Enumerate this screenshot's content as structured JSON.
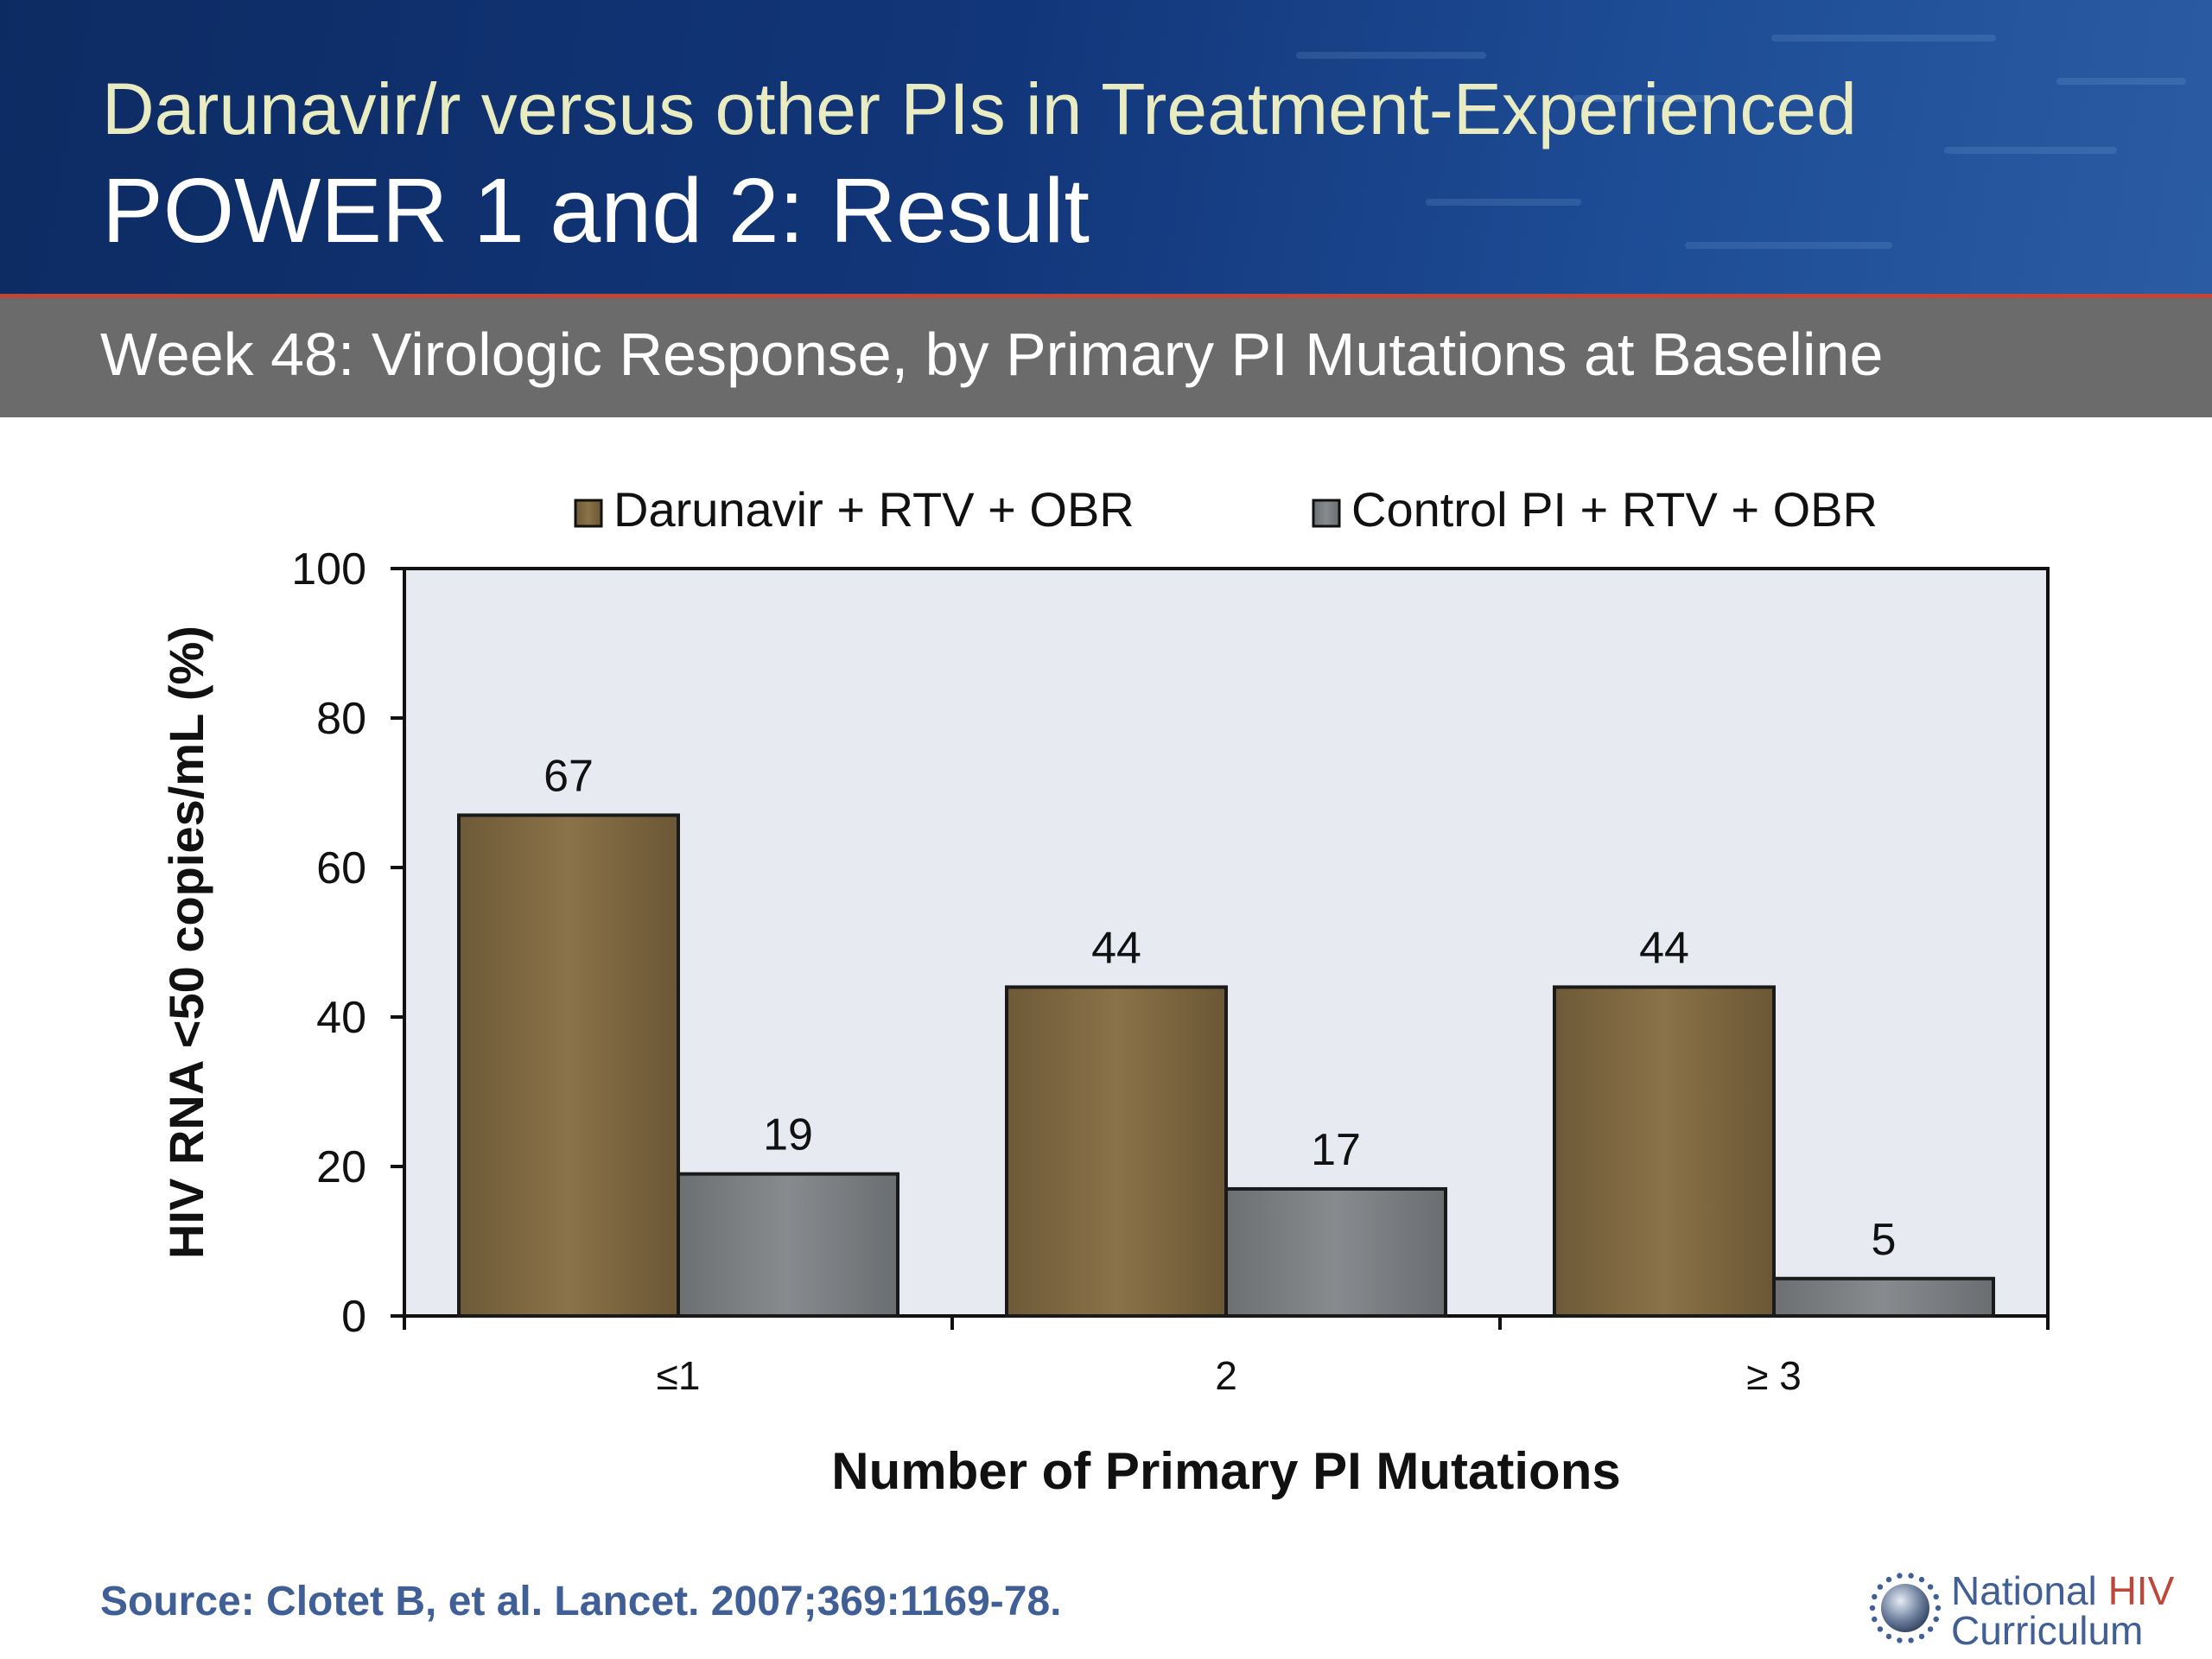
{
  "slide": {
    "title_line1": "Darunavir/r versus other PIs in Treatment-Experienced",
    "title_line2": "POWER 1 and 2: Result",
    "subtitle": "Week 48: Virologic Response, by Primary PI Mutations at Baseline",
    "source": "Source: Clotet B, et al. Lancet. 2007;369:1169-78."
  },
  "logo": {
    "line1_prefix": "National ",
    "line1_accent": "HIV",
    "line2": "Curriculum"
  },
  "colors": {
    "header_blue": "#12367a",
    "accent_red": "#c0463a",
    "title_yellow": "#e9ecc0",
    "subtitle_band": "#6b6b6b",
    "plot_bg": "#e8eaf1",
    "darunavir": "#836c45",
    "control": "#7f8386",
    "source_blue": "#3f5f96"
  },
  "chart_data": {
    "type": "bar",
    "categories": [
      "≤1",
      "2",
      "≥ 3"
    ],
    "series": [
      {
        "name": "Darunavir + RTV + OBR",
        "values": [
          67,
          44,
          44
        ],
        "color": "#836c45"
      },
      {
        "name": "Control PI + RTV + OBR",
        "values": [
          19,
          17,
          5
        ],
        "color": "#7f8386"
      }
    ],
    "xlabel": "Number of Primary PI Mutations",
    "ylabel": "HIV RNA <50 copies/mL (%)",
    "ylim": [
      0,
      100
    ],
    "yticks": [
      0,
      20,
      40,
      60,
      80,
      100
    ],
    "data_labels": true,
    "legend_position": "top",
    "grid": false
  }
}
